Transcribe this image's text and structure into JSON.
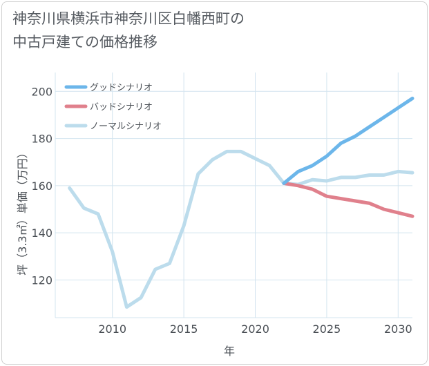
{
  "title_lines": [
    "神奈川県横浜市神奈川区白幡西町の",
    "中古戸建ての価格推移"
  ],
  "chart_data": {
    "type": "line",
    "title": "神奈川県横浜市神奈川区白幡西町の中古戸建ての価格推移",
    "xlabel": "年",
    "ylabel": "坪（3.3㎡）単価（万円）",
    "xlim": [
      2006,
      2031
    ],
    "ylim": [
      104,
      208
    ],
    "xticks": [
      2010,
      2015,
      2020,
      2025,
      2030
    ],
    "yticks": [
      120,
      140,
      160,
      180,
      200
    ],
    "grid": true,
    "legend_position": "top-left",
    "series": [
      {
        "name": "グッドシナリオ",
        "color": "#6cb6ea",
        "x": [
          2022,
          2023,
          2024,
          2025,
          2026,
          2027,
          2028,
          2029,
          2030,
          2031
        ],
        "y": [
          161,
          166,
          168.5,
          172.5,
          178,
          181,
          185,
          189,
          193,
          197
        ]
      },
      {
        "name": "バッドシナリオ",
        "color": "#e0808c",
        "x": [
          2022,
          2023,
          2024,
          2025,
          2026,
          2027,
          2028,
          2029,
          2030,
          2031
        ],
        "y": [
          161,
          160,
          158.5,
          155.5,
          154.5,
          153.5,
          152.5,
          150,
          148.5,
          147
        ]
      },
      {
        "name": "ノーマルシナリオ",
        "color": "#bcdcec",
        "x": [
          2007,
          2008,
          2009,
          2010,
          2011,
          2012,
          2013,
          2014,
          2015,
          2016,
          2017,
          2018,
          2019,
          2020,
          2021,
          2022,
          2023,
          2024,
          2025,
          2026,
          2027,
          2028,
          2029,
          2030,
          2031
        ],
        "y": [
          159,
          150.5,
          148,
          132,
          108.5,
          112.5,
          124.5,
          127,
          143,
          165,
          171,
          174.5,
          174.5,
          171.5,
          168.5,
          161,
          160.5,
          162.5,
          162,
          163.5,
          163.5,
          164.5,
          164.5,
          166,
          165.5
        ]
      }
    ]
  }
}
